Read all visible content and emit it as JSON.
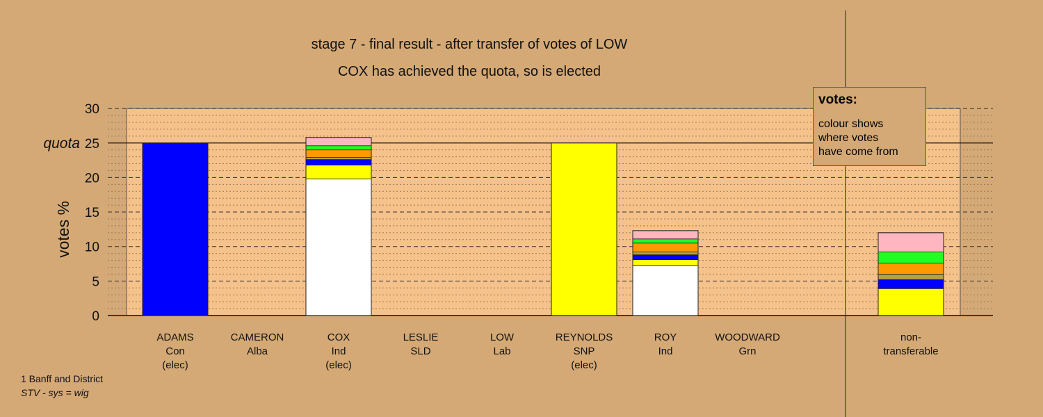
{
  "title": {
    "line1": "stage 7 - final result - after transfer of votes of LOW",
    "line2": "COX has achieved the quota, so is elected"
  },
  "legend": {
    "title": "votes:",
    "text": "colour shows\nwhere votes\nhave come from"
  },
  "footer": {
    "area": "1 Banff and District",
    "system": "STV - sys = wig"
  },
  "colors": {
    "background": "#d4a976",
    "plot_band": "#f5c28b",
    "Con": "#0000ff",
    "SNP": "#ffff00",
    "Ind_own": "#ffffff",
    "Alba": "#b8a040",
    "SLD": "#ff9900",
    "Grn": "#22ff22",
    "Lab": "#ffb6c1"
  },
  "chart_data": {
    "type": "bar",
    "stacked": true,
    "ylabel": "votes %",
    "yticks": [
      0,
      5,
      10,
      15,
      20,
      25,
      30
    ],
    "ylim": [
      0,
      30
    ],
    "quota": 25,
    "quota_label": "quota",
    "grid": true,
    "categories": [
      {
        "name": "ADAMS",
        "party": "Con",
        "note": "(elec)"
      },
      {
        "name": "CAMERON",
        "party": "Alba",
        "note": ""
      },
      {
        "name": "COX",
        "party": "Ind",
        "note": "(elec)"
      },
      {
        "name": "LESLIE",
        "party": "SLD",
        "note": ""
      },
      {
        "name": "LOW",
        "party": "Lab",
        "note": ""
      },
      {
        "name": "REYNOLDS",
        "party": "SNP",
        "note": "(elec)"
      },
      {
        "name": "ROY",
        "party": "Ind",
        "note": ""
      },
      {
        "name": "WOODWARD",
        "party": "Grn",
        "note": ""
      }
    ],
    "nontransferable_label": [
      "non-",
      "transferable"
    ],
    "stacks": [
      [
        {
          "source": "Con",
          "value": 25.0
        }
      ],
      [],
      [
        {
          "source": "Ind_own",
          "value": 19.8
        },
        {
          "source": "SNP",
          "value": 2.0
        },
        {
          "source": "Con",
          "value": 0.8
        },
        {
          "source": "Alba",
          "value": 0.3
        },
        {
          "source": "SLD",
          "value": 1.1
        },
        {
          "source": "Grn",
          "value": 0.6
        },
        {
          "source": "Lab",
          "value": 1.2
        }
      ],
      [],
      [],
      [
        {
          "source": "SNP",
          "value": 25.0
        }
      ],
      [
        {
          "source": "Ind_own",
          "value": 7.2
        },
        {
          "source": "SNP",
          "value": 0.9
        },
        {
          "source": "Con",
          "value": 0.7
        },
        {
          "source": "Alba",
          "value": 0.4
        },
        {
          "source": "SLD",
          "value": 1.3
        },
        {
          "source": "Grn",
          "value": 0.6
        },
        {
          "source": "Lab",
          "value": 1.2
        }
      ],
      []
    ],
    "nontransferable": [
      {
        "source": "SNP",
        "value": 3.9
      },
      {
        "source": "Con",
        "value": 1.3
      },
      {
        "source": "Alba",
        "value": 0.8
      },
      {
        "source": "SLD",
        "value": 1.6
      },
      {
        "source": "Grn",
        "value": 1.6
      },
      {
        "source": "Lab",
        "value": 2.8
      }
    ]
  }
}
